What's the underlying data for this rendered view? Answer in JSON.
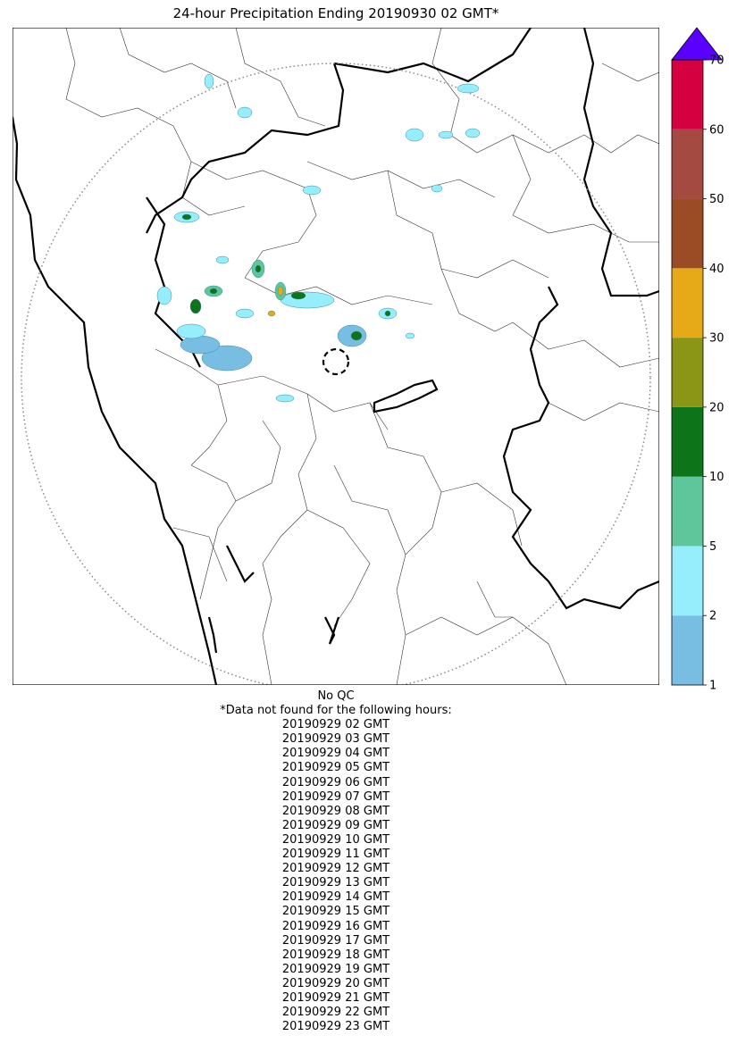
{
  "title": "24-hour Precipitation Ending 20190930 02 GMT*",
  "map": {
    "range_ring": "dotted",
    "radar_marker": "dashed-circle",
    "precip_colors": {
      "1-2": "#78bee3",
      "2-5": "#96eefc",
      "5-10": "#5fc59b",
      "10-20": "#0e7419",
      "20-30": "#8b9516",
      "30-40": "#e6a918",
      "40-50": "#9c4c25",
      "50-60": "#a54a40",
      "60-70": "#d4003f",
      "70+": "#5a00ff"
    }
  },
  "colorbar": {
    "ticks": [
      "1",
      "2",
      "5",
      "10",
      "20",
      "30",
      "40",
      "50",
      "60",
      "70"
    ],
    "colors": [
      "#78bee3",
      "#96eefc",
      "#5fc59b",
      "#0e7419",
      "#8b9516",
      "#e6a918",
      "#9c4c25",
      "#a54a40",
      "#d4003f"
    ],
    "extend_color": "#5a00ff"
  },
  "footer": {
    "qc": "No QC",
    "missing_header": "*Data not found for the following hours:",
    "missing_hours": [
      "20190929 02 GMT",
      "20190929 03 GMT",
      "20190929 04 GMT",
      "20190929 05 GMT",
      "20190929 06 GMT",
      "20190929 07 GMT",
      "20190929 08 GMT",
      "20190929 09 GMT",
      "20190929 10 GMT",
      "20190929 11 GMT",
      "20190929 12 GMT",
      "20190929 13 GMT",
      "20190929 14 GMT",
      "20190929 15 GMT",
      "20190929 16 GMT",
      "20190929 17 GMT",
      "20190929 18 GMT",
      "20190929 19 GMT",
      "20190929 20 GMT",
      "20190929 21 GMT",
      "20190929 22 GMT",
      "20190929 23 GMT"
    ]
  }
}
